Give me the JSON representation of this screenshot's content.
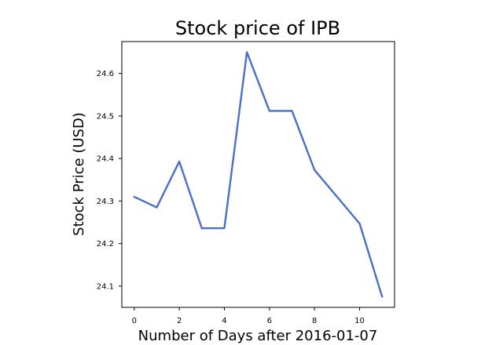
{
  "chart_data": {
    "type": "line",
    "title": "Stock price of IPB",
    "xlabel": "Number of Days after 2016-01-07",
    "ylabel": "Stock Price (USD)",
    "x": [
      0,
      1,
      2,
      3,
      4,
      5,
      6,
      7,
      8,
      9,
      10,
      11
    ],
    "series": [
      {
        "values": [
          24.31,
          24.285,
          24.393,
          24.236,
          24.236,
          24.65,
          24.512,
          24.512,
          24.373,
          24.31,
          24.247,
          24.075
        ]
      }
    ],
    "xlim": [
      -0.55,
      11.55
    ],
    "ylim": [
      24.05,
      24.675
    ],
    "xticks": [
      0,
      2,
      4,
      6,
      8,
      10
    ],
    "yticks": [
      24.1,
      24.2,
      24.3,
      24.4,
      24.5,
      24.6
    ],
    "ytick_decimals": 1,
    "grid": false,
    "line_color": "#4a6fc8"
  }
}
